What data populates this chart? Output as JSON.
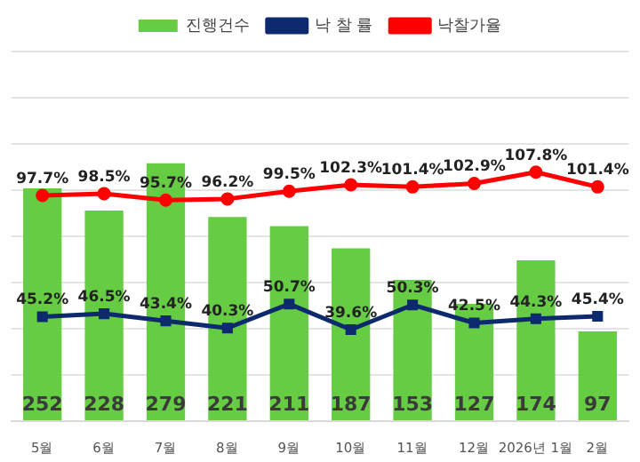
{
  "chart_data": {
    "type": "bar",
    "categories": [
      "5월",
      "6월",
      "7월",
      "8월",
      "9월",
      "10월",
      "11월",
      "12월",
      "2026년 1월",
      "2월"
    ],
    "series": [
      {
        "name": "진행건수",
        "color": "#66cc44",
        "values": [
          252,
          228,
          279,
          221,
          211,
          187,
          153,
          127,
          174,
          97
        ],
        "value_labels": [
          "252",
          "228",
          "279",
          "221",
          "211",
          "187",
          "153",
          "127",
          "174",
          "97"
        ]
      },
      {
        "name": "낙 찰 률",
        "type": "line",
        "axis": "y2",
        "color": "#0d2a6e",
        "marker": "square",
        "values": [
          45.2,
          46.5,
          43.4,
          40.3,
          50.7,
          39.6,
          50.3,
          42.5,
          44.3,
          45.4
        ],
        "value_labels": [
          "45.2%",
          "46.5%",
          "43.4%",
          "40.3%",
          "50.7%",
          "39.6%",
          "50.3%",
          "42.5%",
          "44.3%",
          "45.4%"
        ]
      },
      {
        "name": "낙찰가율",
        "type": "line",
        "axis": "y2",
        "color": "#ff0000",
        "marker": "circle",
        "values": [
          97.7,
          98.5,
          95.7,
          96.2,
          99.5,
          102.3,
          101.4,
          102.9,
          107.8,
          101.4
        ],
        "value_labels": [
          "97.7%",
          "98.5%",
          "95.7%",
          "96.2%",
          "99.5%",
          "102.3%",
          "101.4%",
          "102.9%",
          "107.8%",
          "101.4%"
        ]
      }
    ],
    "ylim": [
      0,
      400
    ],
    "yticks": [
      {
        "value": 0,
        "label": null
      },
      {
        "value": 50,
        "label": null
      },
      {
        "value": 100,
        "label": null
      },
      {
        "value": 150,
        "label": null
      },
      {
        "value": 200,
        "label": null
      },
      {
        "value": 250,
        "label": null
      },
      {
        "value": 300,
        "label": null
      },
      {
        "value": 350,
        "label": null
      },
      {
        "value": 400,
        "label": null
      }
    ],
    "y2lim": [
      0,
      160
    ],
    "grid": "y",
    "legend": "top",
    "tick_labels": "x"
  }
}
